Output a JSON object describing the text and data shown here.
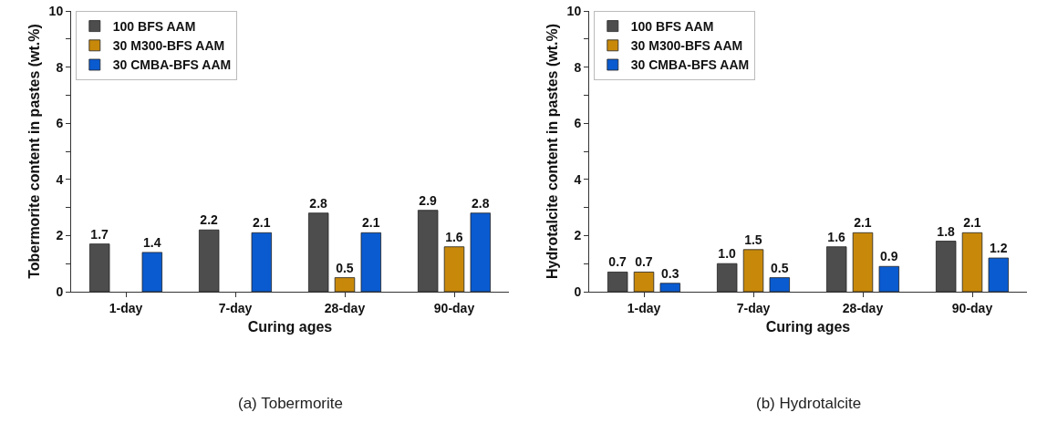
{
  "chart_data": [
    {
      "type": "bar",
      "xlabel": "Curing ages",
      "ylabel": "Tobermorite content in pastes (wt.%)",
      "annotations": [
        "(a) Tobermorite"
      ],
      "categories": [
        "1-day",
        "7-day",
        "28-day",
        "90-day"
      ],
      "ylim": [
        0,
        10
      ],
      "yticks": [
        0,
        {
          "value": 1,
          "label": null
        },
        2,
        {
          "value": 3,
          "label": null
        },
        4,
        {
          "value": 5,
          "label": null
        },
        6,
        {
          "value": 7,
          "label": null
        },
        8,
        {
          "value": 9,
          "label": null
        },
        10
      ],
      "grid": false,
      "legend": "top left",
      "series": [
        {
          "name": "100 BFS AAM",
          "color": "#4d4d4d",
          "values": [
            1.7,
            2.2,
            2.8,
            2.9
          ],
          "value_labels": [
            "1.7",
            "2.2",
            "2.8",
            "2.9"
          ]
        },
        {
          "name": "30 M300-BFS AAM",
          "color": "#c8890a",
          "values": [
            null,
            null,
            0.5,
            1.6
          ],
          "value_labels": [
            null,
            null,
            "0.5",
            "1.6"
          ]
        },
        {
          "name": "30 CMBA-BFS AAM",
          "color": "#0a5bd0",
          "values": [
            1.4,
            2.1,
            2.1,
            2.8
          ],
          "value_labels": [
            "1.4",
            "2.1",
            "2.1",
            "2.8"
          ]
        }
      ]
    },
    {
      "type": "bar",
      "xlabel": "Curing ages",
      "ylabel": "Hydrotalcite content in pastes (wt.%)",
      "annotations": [
        "(b) Hydrotalcite"
      ],
      "categories": [
        "1-day",
        "7-day",
        "28-day",
        "90-day"
      ],
      "ylim": [
        0,
        10
      ],
      "yticks": [
        0,
        {
          "value": 1,
          "label": null
        },
        2,
        {
          "value": 3,
          "label": null
        },
        4,
        {
          "value": 5,
          "label": null
        },
        6,
        {
          "value": 7,
          "label": null
        },
        8,
        {
          "value": 9,
          "label": null
        },
        10
      ],
      "grid": false,
      "legend": "top left",
      "series": [
        {
          "name": "100 BFS AAM",
          "color": "#4d4d4d",
          "values": [
            0.7,
            1.0,
            1.6,
            1.8
          ],
          "value_labels": [
            "0.7",
            "1.0",
            "1.6",
            "1.8"
          ]
        },
        {
          "name": "30 M300-BFS AAM",
          "color": "#c8890a",
          "values": [
            0.7,
            1.5,
            2.1,
            2.1
          ],
          "value_labels": [
            "0.7",
            "1.5",
            "2.1",
            "2.1"
          ]
        },
        {
          "name": "30 CMBA-BFS AAM",
          "color": "#0a5bd0",
          "values": [
            0.3,
            0.5,
            0.9,
            1.2
          ],
          "value_labels": [
            "0.3",
            "0.5",
            "0.9",
            "1.2"
          ]
        }
      ]
    }
  ]
}
